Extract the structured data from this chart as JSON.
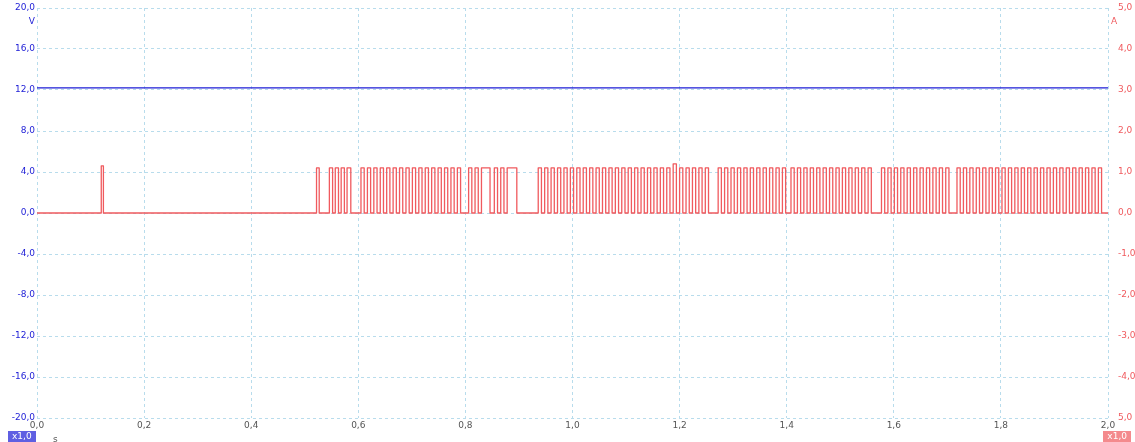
{
  "chart_data": {
    "type": "line",
    "xlabel": "s",
    "ylabel": "V",
    "y2label": "A",
    "xlim": [
      0,
      2.0
    ],
    "xticks": [
      {
        "value": 0,
        "label": "0,0"
      },
      {
        "value": 0.2,
        "label": "0,2"
      },
      {
        "value": 0.4,
        "label": "0,4"
      },
      {
        "value": 0.6,
        "label": "0,6"
      },
      {
        "value": 0.8,
        "label": "0,8"
      },
      {
        "value": 1.0,
        "label": "1,0"
      },
      {
        "value": 1.2,
        "label": "1,2"
      },
      {
        "value": 1.4,
        "label": "1,4"
      },
      {
        "value": 1.6,
        "label": "1,6"
      },
      {
        "value": 1.8,
        "label": "1,8"
      },
      {
        "value": 2.0,
        "label": "2,0"
      }
    ],
    "ylim": [
      -20,
      20
    ],
    "yticks": [
      {
        "value": -20,
        "label": "-20,0"
      },
      {
        "value": -16,
        "label": "-16,0"
      },
      {
        "value": -12,
        "label": "-12,0"
      },
      {
        "value": -8,
        "label": "-8,0"
      },
      {
        "value": -4,
        "label": "-4,0"
      },
      {
        "value": 0,
        "label": "0,0"
      },
      {
        "value": 4,
        "label": "4,0"
      },
      {
        "value": 8,
        "label": "8,0"
      },
      {
        "value": 12,
        "label": "12,0"
      },
      {
        "value": 16,
        "label": "16,0"
      },
      {
        "value": 20,
        "label": "20,0"
      }
    ],
    "y2lim": [
      -5,
      5
    ],
    "y2ticks": [
      {
        "value": -5,
        "label": "5,0"
      },
      {
        "value": -4,
        "label": "-4,0"
      },
      {
        "value": -3,
        "label": "-3,0"
      },
      {
        "value": -2,
        "label": "-2,0"
      },
      {
        "value": -1,
        "label": "-1,0"
      },
      {
        "value": 0,
        "label": "0,0"
      },
      {
        "value": 1,
        "label": "1,0"
      },
      {
        "value": 2,
        "label": "2,0"
      },
      {
        "value": 3,
        "label": "3,0"
      },
      {
        "value": 4,
        "label": "4,0"
      },
      {
        "value": 5,
        "label": "5,0"
      }
    ],
    "grid": true,
    "line_style": "solid",
    "marker": "none",
    "annotations": [
      "x1,0",
      "x1,0"
    ],
    "series": [
      {
        "type": "line",
        "color": "#1c1cd6",
        "x": [
          0,
          2.0
        ],
        "values": [
          12.2,
          12.2
        ]
      },
      {
        "type": "step",
        "axis": "y2",
        "color": "#f05a5e",
        "x": [
          0,
          0.12,
          0.124,
          0.522,
          0.527,
          0.546,
          0.552,
          0.557,
          0.563,
          0.568,
          0.574,
          0.579,
          0.586,
          0.605,
          0.611,
          0.617,
          0.623,
          0.629,
          0.635,
          0.641,
          0.647,
          0.653,
          0.659,
          0.665,
          0.671,
          0.677,
          0.683,
          0.689,
          0.695,
          0.701,
          0.707,
          0.713,
          0.719,
          0.725,
          0.731,
          0.737,
          0.743,
          0.749,
          0.755,
          0.761,
          0.767,
          0.773,
          0.779,
          0.785,
          0.791,
          0.806,
          0.812,
          0.818,
          0.824,
          0.83,
          0.846,
          0.854,
          0.86,
          0.866,
          0.872,
          0.878,
          0.896,
          0.936,
          0.942,
          0.948,
          0.954,
          0.96,
          0.966,
          0.972,
          0.978,
          0.984,
          0.99,
          0.996,
          1.002,
          1.008,
          1.014,
          1.02,
          1.026,
          1.032,
          1.038,
          1.044,
          1.05,
          1.056,
          1.062,
          1.068,
          1.074,
          1.08,
          1.086,
          1.092,
          1.098,
          1.104,
          1.11,
          1.116,
          1.122,
          1.128,
          1.134,
          1.14,
          1.146,
          1.152,
          1.158,
          1.164,
          1.17,
          1.176,
          1.182,
          1.188,
          1.194,
          1.2,
          1.206,
          1.212,
          1.218,
          1.224,
          1.23,
          1.236,
          1.242,
          1.248,
          1.254,
          1.272,
          1.278,
          1.284,
          1.29,
          1.296,
          1.302,
          1.308,
          1.314,
          1.32,
          1.326,
          1.332,
          1.338,
          1.344,
          1.35,
          1.356,
          1.362,
          1.368,
          1.374,
          1.38,
          1.386,
          1.392,
          1.398,
          1.408,
          1.414,
          1.42,
          1.426,
          1.432,
          1.438,
          1.444,
          1.45,
          1.456,
          1.462,
          1.468,
          1.474,
          1.48,
          1.486,
          1.492,
          1.498,
          1.504,
          1.51,
          1.516,
          1.522,
          1.528,
          1.534,
          1.54,
          1.546,
          1.552,
          1.558,
          1.577,
          1.583,
          1.589,
          1.595,
          1.601,
          1.607,
          1.613,
          1.619,
          1.625,
          1.631,
          1.637,
          1.643,
          1.649,
          1.655,
          1.661,
          1.667,
          1.673,
          1.679,
          1.685,
          1.691,
          1.697,
          1.703,
          1.718,
          1.724,
          1.73,
          1.736,
          1.742,
          1.748,
          1.754,
          1.76,
          1.766,
          1.772,
          1.778,
          1.784,
          1.79,
          1.796,
          1.802,
          1.808,
          1.814,
          1.82,
          1.826,
          1.832,
          1.838,
          1.844,
          1.85,
          1.856,
          1.862,
          1.868,
          1.874,
          1.88,
          1.886,
          1.892,
          1.898,
          1.904,
          1.91,
          1.916,
          1.922,
          1.928,
          1.934,
          1.94,
          1.946,
          1.952,
          1.958,
          1.964,
          1.97,
          1.976,
          1.982,
          1.988,
          2.0
        ],
        "values": [
          0,
          1.15,
          0,
          1.1,
          0,
          1.1,
          0,
          1.1,
          0,
          1.1,
          0,
          1.1,
          0,
          1.1,
          0,
          1.1,
          0,
          1.1,
          0,
          1.1,
          0,
          1.1,
          0,
          1.1,
          0,
          1.1,
          0,
          1.1,
          0,
          1.1,
          0,
          1.1,
          0,
          1.1,
          0,
          1.1,
          0,
          1.1,
          0,
          1.1,
          0,
          1.1,
          0,
          1.1,
          0,
          1.1,
          0,
          1.1,
          0,
          1.1,
          0,
          1.1,
          0,
          1.1,
          0,
          1.1,
          0,
          1.1,
          0,
          1.1,
          0,
          1.1,
          0,
          1.1,
          0,
          1.1,
          0,
          1.1,
          0,
          1.1,
          0,
          1.1,
          0,
          1.1,
          0,
          1.1,
          0,
          1.1,
          0,
          1.1,
          0,
          1.1,
          0,
          1.1,
          0,
          1.1,
          0,
          1.1,
          0,
          1.1,
          0,
          1.1,
          0,
          1.1,
          0,
          1.1,
          0,
          1.1,
          0,
          1.2,
          0,
          1.1,
          0,
          1.1,
          0,
          1.1,
          0,
          1.1,
          0,
          1.1,
          0,
          1.1,
          0,
          1.1,
          0,
          1.1,
          0,
          1.1,
          0,
          1.1,
          0,
          1.1,
          0,
          1.1,
          0,
          1.1,
          0,
          1.1,
          0,
          1.1,
          0,
          1.1,
          0,
          1.1,
          0,
          1.1,
          0,
          1.1,
          0,
          1.1,
          0,
          1.1,
          0,
          1.1,
          0,
          1.1,
          0,
          1.1,
          0,
          1.1,
          0,
          1.1,
          0,
          1.1,
          0,
          1.1,
          0,
          1.1,
          0,
          1.1,
          0,
          1.1,
          0,
          1.1,
          0,
          1.1,
          0,
          1.1,
          0,
          1.1,
          0,
          1.1,
          0,
          1.1,
          0,
          1.1,
          0,
          1.1,
          0,
          1.1,
          0,
          1.1,
          0,
          1.1,
          0,
          1.1,
          0,
          1.1,
          0,
          1.1,
          0,
          1.1,
          0,
          1.1,
          0,
          1.1,
          0,
          1.1,
          0,
          1.1,
          0,
          1.1,
          0,
          1.1,
          0,
          1.1,
          0,
          1.1,
          0,
          1.1,
          0,
          1.1,
          0,
          1.1,
          0,
          1.1,
          0,
          1.1,
          0,
          1.1,
          0,
          1.1,
          0,
          1.1,
          0,
          1.1,
          0,
          0
        ]
      }
    ]
  }
}
